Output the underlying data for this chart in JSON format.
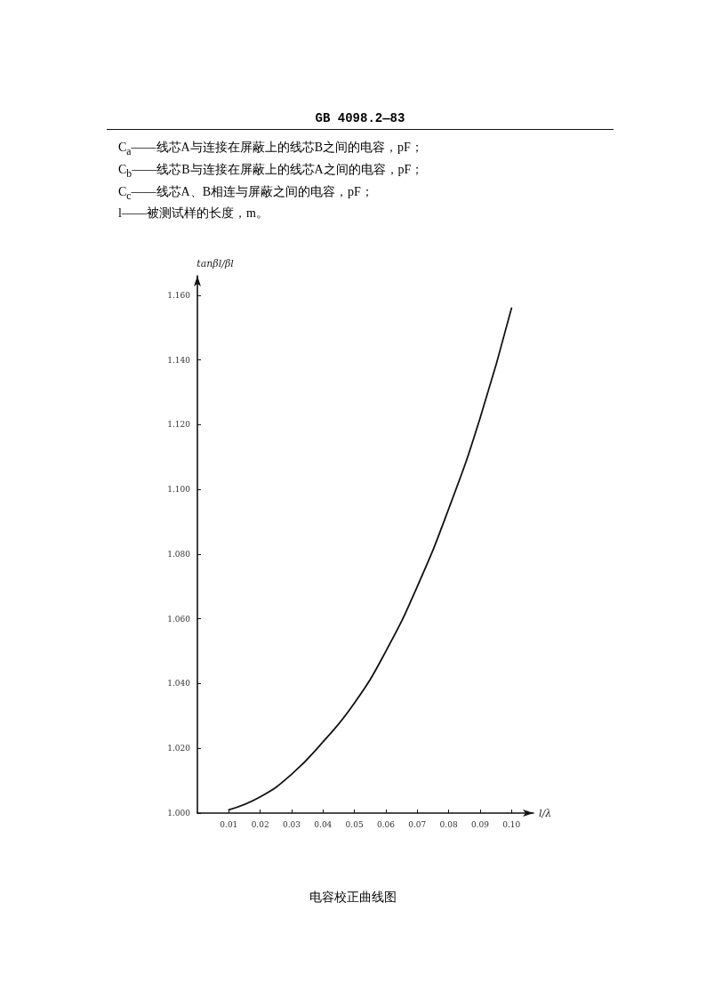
{
  "chart_data": {
    "type": "line",
    "title": "电容校正曲线图",
    "annotations": [
      "GB 4098.2—83",
      "C$_{a}$——线芯A与连接在屏蔽上的线芯B之间的电容，pF；",
      "C$_{b}$——线芯B与连接在屏蔽上的线芯A之间的电容，pF；",
      "C$_{c}$——线芯A、B相连与屏蔽之间的电容，pF；",
      "l——被测试样的长度，m。"
    ],
    "xlabel": "l/λ",
    "ylabel": "tanβl/βl",
    "x": [
      0.01,
      0.02,
      0.03,
      0.04,
      0.05,
      0.06,
      0.07,
      0.08,
      0.09,
      0.1
    ],
    "series": [
      {
        "color": "#111111",
        "values": [
          1.001,
          1.005,
          1.012,
          1.022,
          1.034,
          1.05,
          1.07,
          1.094,
          1.122,
          1.156
        ]
      }
    ],
    "xlim": [
      0,
      0.107
    ],
    "ylim": [
      1.0,
      1.166
    ],
    "xticks": [
      0.01,
      0.02,
      0.03,
      0.04,
      0.05,
      0.06,
      0.07,
      0.08,
      0.09,
      {
        "value": 0.1,
        "label": "0.10"
      }
    ],
    "yticks": [
      {
        "value": 1.0,
        "label": "1.000"
      },
      {
        "value": 1.02,
        "label": "1.020"
      },
      {
        "value": 1.04,
        "label": "1.040"
      },
      {
        "value": 1.06,
        "label": "1.060"
      },
      {
        "value": 1.08,
        "label": "1.080"
      },
      {
        "value": 1.1,
        "label": "1.100"
      },
      {
        "value": 1.12,
        "label": "1.120"
      },
      {
        "value": 1.14,
        "label": "1.140"
      },
      {
        "value": 1.16,
        "label": "1.160"
      }
    ],
    "grid": false,
    "marker": "none",
    "line_style": "solid"
  }
}
